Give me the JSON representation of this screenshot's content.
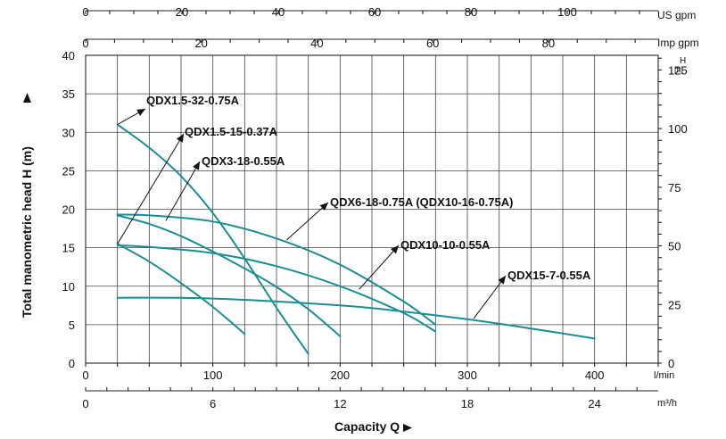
{
  "chart_data": {
    "type": "line",
    "xlabel": "Capacity Q",
    "ylabel": "Total manometric head H (m)",
    "x_unit_lmin": "l/min",
    "x_unit_m3h": "m³/h",
    "top_unit_usgpm": "US gpm",
    "top_unit_impgpm": "Imp gpm",
    "right_unit_main": "H",
    "right_unit_sub": "[ft]",
    "xlim": [
      0,
      450
    ],
    "ylim": [
      0,
      40
    ],
    "x_ticks_lmin": [
      "0",
      "100",
      "200",
      "300",
      "400"
    ],
    "x_ticks_lmin_values": [
      0,
      100,
      200,
      300,
      400
    ],
    "x_ticks_m3h": [
      "0",
      "6",
      "12",
      "18",
      "24"
    ],
    "x_ticks_m3h_values": [
      0,
      100,
      200,
      300,
      400
    ],
    "x_ticks_usgpm": [
      "0",
      "20",
      "40",
      "60",
      "80",
      "100"
    ],
    "x_ticks_usgpm_values": [
      0,
      75.7,
      151.4,
      227.1,
      302.8,
      378.5
    ],
    "x_ticks_impgpm": [
      "0",
      "20",
      "40",
      "60",
      "80"
    ],
    "x_ticks_impgpm_values": [
      0,
      90.9,
      181.8,
      272.8,
      363.7
    ],
    "y_ticks": [
      "0",
      "5",
      "10",
      "15",
      "20",
      "25",
      "30",
      "35",
      "40"
    ],
    "y_ticks_values": [
      0,
      5,
      10,
      15,
      20,
      25,
      30,
      35,
      40
    ],
    "y_ticks_ft": [
      "0",
      "25",
      "50",
      "75",
      "100",
      "125"
    ],
    "y_ticks_ft_values": [
      0,
      7.62,
      15.24,
      22.86,
      30.48,
      38.1
    ],
    "grid_x_values": [
      25,
      50,
      75,
      100,
      125,
      150,
      175,
      200,
      225,
      250,
      275,
      300,
      325,
      350,
      375,
      400,
      425
    ],
    "grid_y_values": [
      5,
      10,
      15,
      20,
      25,
      30,
      35
    ],
    "series": [
      {
        "name": "QDX1.5-32-0.75A",
        "x": [
          25,
          50,
          75,
          100,
          125,
          150,
          175
        ],
        "y": [
          31,
          28,
          24.3,
          19.5,
          13.6,
          7.2,
          1.2
        ]
      },
      {
        "name": "QDX1.5-15-0.37A",
        "x": [
          25,
          50,
          75,
          100,
          125
        ],
        "y": [
          15.5,
          13.2,
          10.4,
          7.3,
          3.8
        ]
      },
      {
        "name": "QDX3-18-0.55A",
        "x": [
          25,
          50,
          75,
          100,
          125,
          150,
          175,
          200
        ],
        "y": [
          19.2,
          18.1,
          16.5,
          14.5,
          12.3,
          9.9,
          7,
          3.5
        ]
      },
      {
        "name": "QDX6-18-0.75A (QDX10-16-0.75A)",
        "x": [
          25,
          50,
          100,
          150,
          200,
          250,
          275
        ],
        "y": [
          19.3,
          19.2,
          18.4,
          16.2,
          12.8,
          8,
          5
        ]
      },
      {
        "name": "QDX10-10-0.55A",
        "x": [
          25,
          50,
          100,
          150,
          200,
          250,
          275
        ],
        "y": [
          15.3,
          15.1,
          14.3,
          12.6,
          10,
          6.5,
          4.1
        ]
      },
      {
        "name": "QDX15-7-0.55A",
        "x": [
          25,
          100,
          200,
          250,
          300,
          350,
          400
        ],
        "y": [
          8.5,
          8.4,
          7.5,
          6.7,
          5.7,
          4.5,
          3.2
        ]
      }
    ],
    "annotations": [
      {
        "text": "QDX1.5-32-0.75A",
        "pt": [
          25,
          31
        ]
      },
      {
        "text": "QDX1.5-15-0.37A",
        "pt": [
          25,
          15.5
        ]
      },
      {
        "text": "QDX3-18-0.55A",
        "pt": [
          63,
          18.5
        ]
      },
      {
        "text": "QDX6-18-0.75A (QDX10-16-0.75A)",
        "pt": [
          158,
          16
        ]
      },
      {
        "text": "QDX10-10-0.55A",
        "pt": [
          215,
          9.6
        ]
      },
      {
        "text": "QDX15-7-0.55A",
        "pt": [
          305,
          5.8
        ]
      }
    ],
    "grid": true,
    "legend": "none"
  }
}
